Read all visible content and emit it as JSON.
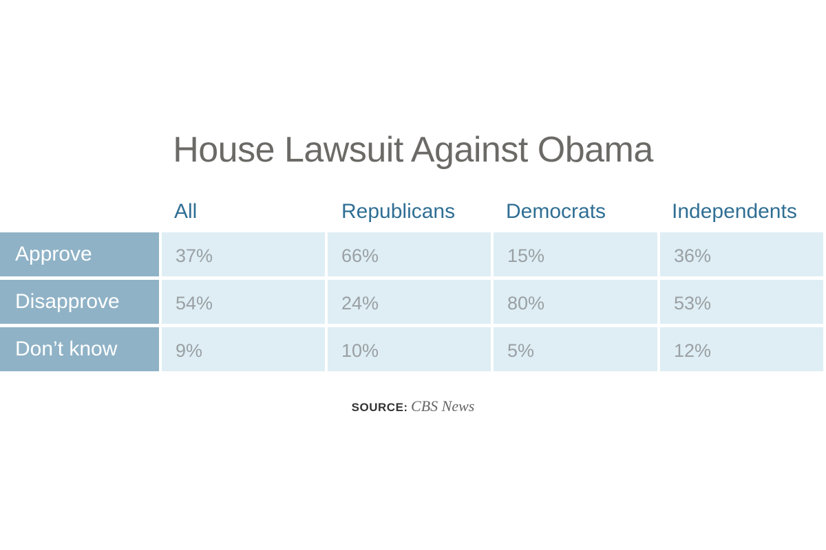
{
  "chart_data": {
    "type": "table",
    "title": "House Lawsuit Against Obama",
    "columns": [
      "All",
      "Republicans",
      "Democrats",
      "Independents"
    ],
    "rows": [
      {
        "label": "Approve",
        "values": [
          "37%",
          "66%",
          "15%",
          "36%"
        ]
      },
      {
        "label": "Disapprove",
        "values": [
          "54%",
          "24%",
          "80%",
          "53%"
        ]
      },
      {
        "label": "Don’t know",
        "values": [
          "9%",
          "10%",
          "5%",
          "12%"
        ]
      }
    ],
    "source_label": "SOURCE:",
    "source": "CBS News"
  },
  "colors": {
    "title": "#6b6a66",
    "header_text": "#2f6e94",
    "row_label_bg": "#8fb2c6",
    "cell_bg": "#deeef4",
    "cell_text": "#9aa0a4"
  }
}
